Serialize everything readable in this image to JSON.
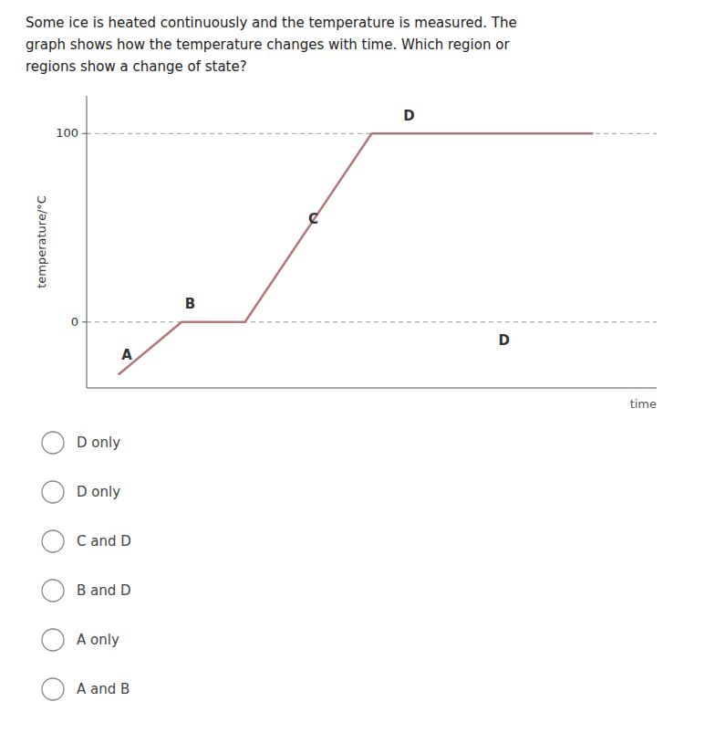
{
  "chart_data": {
    "type": "line",
    "title": [
      "Some ice is heated continuously and the temperature is measured. The",
      "graph shows how the temperature changes with time. Which region or",
      "regions show a change of state?"
    ],
    "x_label": "time",
    "y_label": "temperature/°C",
    "x": [
      0.5,
      1.5,
      2.5,
      4.5,
      5.5,
      8.0
    ],
    "values": [
      -28,
      0,
      0,
      100,
      100,
      100
    ],
    "color": "#b07878",
    "xlim": [
      0,
      9
    ],
    "ylim": [
      -35,
      120
    ],
    "xticks": [],
    "yticks": [
      0,
      100
    ],
    "tick_labels": "y",
    "grid": true,
    "annotations": [
      {
        "text": "A",
        "x": 0.55,
        "y": -20
      },
      {
        "text": "B",
        "x": 1.55,
        "y": 7
      },
      {
        "text": "C",
        "x": 3.5,
        "y": 52
      },
      {
        "text": "D",
        "x": 5.0,
        "y": 107
      },
      {
        "text": "D",
        "x": 6.5,
        "y": -12
      }
    ],
    "options": [
      "D only",
      "D only",
      "C and D",
      "B and D",
      "A only",
      "A and B"
    ]
  }
}
